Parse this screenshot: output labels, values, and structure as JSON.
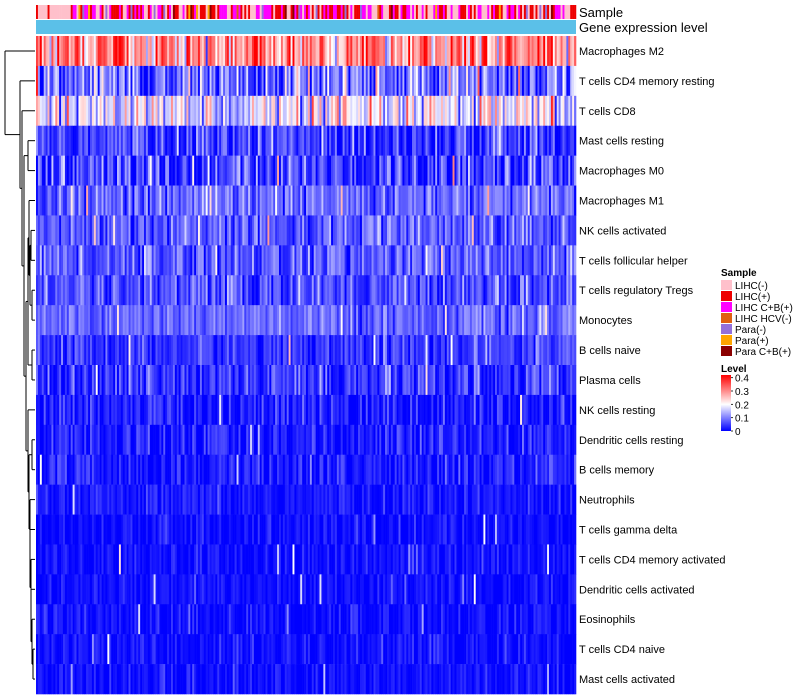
{
  "chart_data": {
    "type": "heatmap",
    "title": "",
    "annotation_tracks": [
      {
        "label": "Sample"
      },
      {
        "label": "Gene expression level"
      }
    ],
    "rows": [
      {
        "label": "Macrophages M2",
        "mean": 0.3,
        "spread": 0.08
      },
      {
        "label": "T cells CD4 memory resting",
        "mean": 0.09,
        "spread": 0.07
      },
      {
        "label": "T cells CD8",
        "mean": 0.17,
        "spread": 0.07
      },
      {
        "label": "Mast cells resting",
        "mean": 0.05,
        "spread": 0.05
      },
      {
        "label": "Macrophages M0",
        "mean": 0.05,
        "spread": 0.06
      },
      {
        "label": "Macrophages M1",
        "mean": 0.08,
        "spread": 0.04
      },
      {
        "label": "NK cells activated",
        "mean": 0.07,
        "spread": 0.04
      },
      {
        "label": "T cells follicular helper",
        "mean": 0.07,
        "spread": 0.04
      },
      {
        "label": "T cells regulatory  Tregs",
        "mean": 0.06,
        "spread": 0.04
      },
      {
        "label": "Monocytes",
        "mean": 0.08,
        "spread": 0.03
      },
      {
        "label": "B cells naive",
        "mean": 0.04,
        "spread": 0.03
      },
      {
        "label": "Plasma cells",
        "mean": 0.04,
        "spread": 0.04
      },
      {
        "label": "NK cells resting",
        "mean": 0.02,
        "spread": 0.03
      },
      {
        "label": "Dendritic cells resting",
        "mean": 0.02,
        "spread": 0.03
      },
      {
        "label": "B cells memory",
        "mean": 0.02,
        "spread": 0.03
      },
      {
        "label": "Neutrophils",
        "mean": 0.015,
        "spread": 0.02
      },
      {
        "label": "T cells gamma delta",
        "mean": 0.01,
        "spread": 0.02
      },
      {
        "label": "T cells CD4 memory activated",
        "mean": 0.01,
        "spread": 0.02
      },
      {
        "label": "Dendritic cells activated",
        "mean": 0.01,
        "spread": 0.02
      },
      {
        "label": "Eosinophils",
        "mean": 0.01,
        "spread": 0.02
      },
      {
        "label": "T cells CD4 naive",
        "mean": 0.01,
        "spread": 0.02
      },
      {
        "label": "Mast cells activated",
        "mean": 0.01,
        "spread": 0.02
      }
    ],
    "n_samples": 280,
    "legend": {
      "position": "right",
      "sample": {
        "title": "Sample",
        "items": [
          {
            "label": "LIHC(-)",
            "color": "#ffc0cb"
          },
          {
            "label": "LIHC(+)",
            "color": "#ee0000"
          },
          {
            "label": "LIHC C+B(+)",
            "color": "#ff00ff"
          },
          {
            "label": "LIHC HCV(-)",
            "color": "#e06010"
          },
          {
            "label": "Para(-)",
            "color": "#9370db"
          },
          {
            "label": "Para(+)",
            "color": "#ffa500"
          },
          {
            "label": "Para C+B(+)",
            "color": "#8b0000"
          }
        ]
      },
      "level": {
        "title": "Level",
        "ticks": [
          "0.4",
          "0.3",
          "0.2",
          "0.1",
          "0"
        ],
        "tick_values": [
          0.4,
          0.3,
          0.2,
          0.1,
          0
        ],
        "range": [
          0,
          0.42
        ],
        "colors": {
          "low": "#0000ff",
          "mid": "#ffffff",
          "high": "#ff0000",
          "midpoint": 0.2
        }
      }
    },
    "expression_track_color": "#5bc0e8",
    "sample_mix": [
      0.3,
      0.32,
      0.27,
      0.01,
      0.04,
      0.03,
      0.03
    ]
  }
}
